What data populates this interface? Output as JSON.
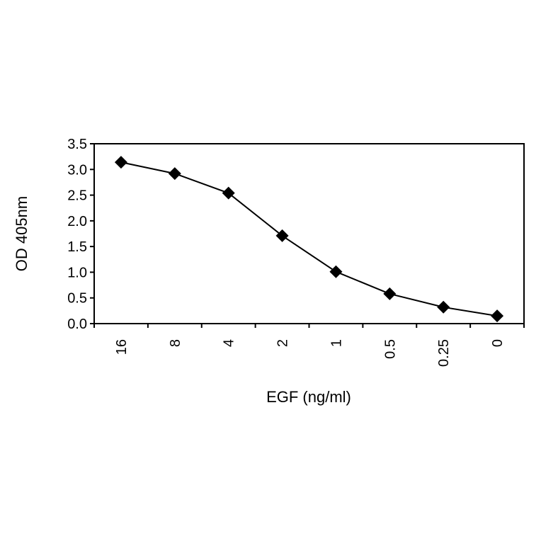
{
  "chart_data": {
    "type": "line",
    "xlabel": "EGF (ng/ml)",
    "ylabel": "OD 405nm",
    "categories": [
      "16",
      "8",
      "4",
      "2",
      "1",
      "0.5",
      "0.25",
      "0"
    ],
    "series": [
      {
        "values": [
          3.14,
          2.92,
          2.54,
          1.71,
          1.01,
          0.58,
          0.32,
          0.15
        ]
      }
    ],
    "ylim": [
      0,
      3.5
    ],
    "yticks": [
      "0.0",
      "0.5",
      "1.0",
      "1.5",
      "2.0",
      "2.5",
      "3.0",
      "3.5"
    ],
    "grid": false,
    "marker": "diamond",
    "colors": {
      "line": "#000000",
      "marker": "#000000",
      "axis": "#000000"
    }
  }
}
